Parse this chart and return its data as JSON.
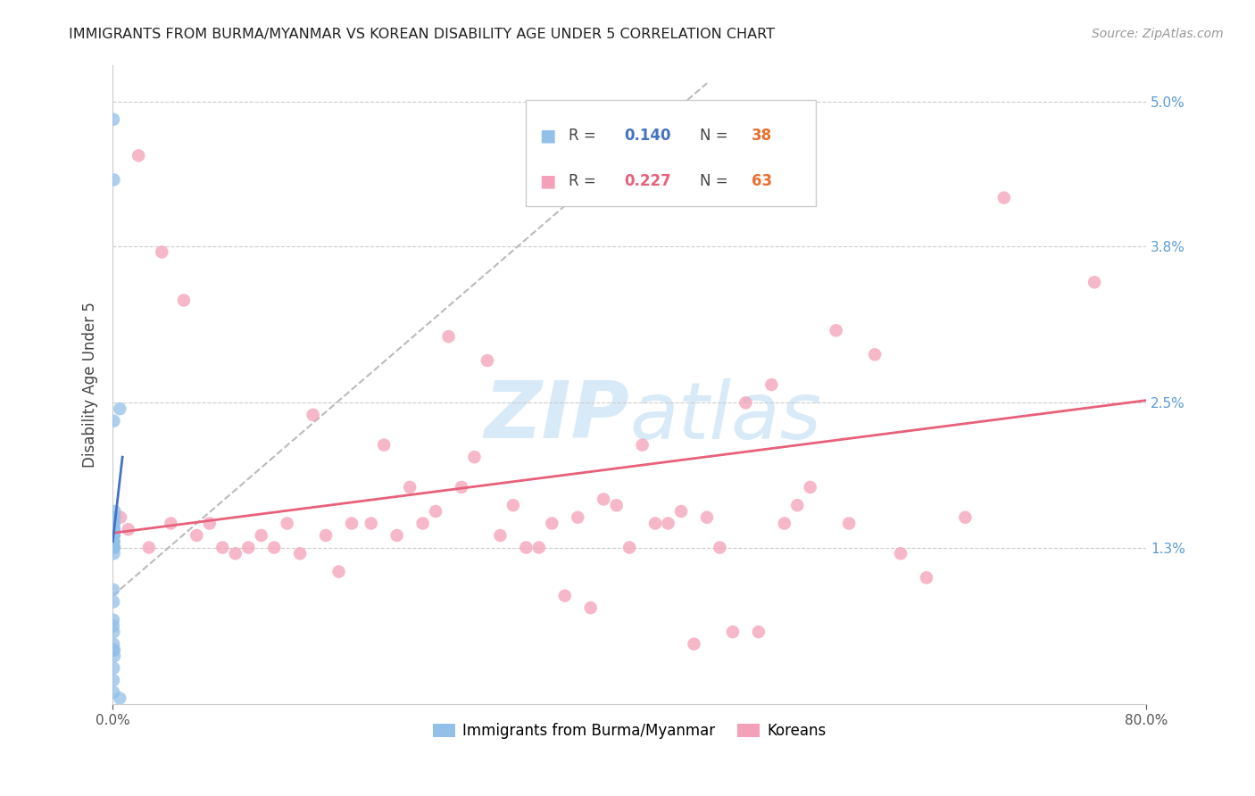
{
  "title": "IMMIGRANTS FROM BURMA/MYANMAR VS KOREAN DISABILITY AGE UNDER 5 CORRELATION CHART",
  "source": "Source: ZipAtlas.com",
  "ylabel": "Disability Age Under 5",
  "xlim": [
    0.0,
    80.0
  ],
  "ylim": [
    0.0,
    5.3
  ],
  "y_ticks": [
    1.3,
    2.5,
    3.8,
    5.0
  ],
  "x_ticks": [
    0.0,
    80.0
  ],
  "blue_color": "#92C0E8",
  "pink_color": "#F4A0B8",
  "blue_line_color": "#4472C4",
  "pink_line_color": "#E8607A",
  "gray_dash_color": "#BBBBBB",
  "watermark_color": "#D8EAF7",
  "legend_label_blue": "Immigrants from Burma/Myanmar",
  "legend_label_pink": "Koreans",
  "legend_r_blue": "0.140",
  "legend_n_blue": "38",
  "legend_r_pink": "0.227",
  "legend_n_pink": "63",
  "blue_scatter_x": [
    0.05,
    0.08,
    0.12,
    0.05,
    0.06,
    0.07,
    0.09,
    0.1,
    0.11,
    0.13,
    0.15,
    0.04,
    0.03,
    0.06,
    0.07,
    0.08,
    0.09,
    0.1,
    0.11,
    0.06,
    0.07,
    0.08,
    0.09,
    0.1,
    0.05,
    0.04,
    0.06,
    0.07,
    0.08,
    0.09,
    0.1,
    0.11,
    0.12,
    0.05,
    0.06,
    0.07,
    0.55,
    0.55
  ],
  "blue_scatter_y": [
    4.85,
    4.35,
    0.45,
    0.2,
    0.1,
    1.55,
    1.5,
    1.45,
    1.4,
    1.55,
    1.6,
    1.3,
    0.45,
    1.35,
    1.4,
    1.45,
    1.35,
    1.45,
    1.5,
    0.85,
    0.6,
    2.35,
    1.25,
    1.3,
    0.95,
    0.65,
    1.35,
    1.4,
    1.3,
    1.3,
    1.45,
    1.3,
    0.4,
    0.7,
    0.5,
    0.3,
    2.45,
    0.05
  ],
  "pink_scatter_x": [
    0.6,
    2.0,
    5.5,
    7.5,
    10.5,
    13.5,
    15.5,
    18.5,
    21.0,
    23.0,
    26.0,
    29.0,
    31.0,
    34.0,
    36.0,
    39.0,
    41.0,
    43.0,
    46.0,
    49.0,
    51.0,
    53.0,
    56.0,
    59.0,
    61.0,
    63.0,
    66.0,
    1.2,
    2.8,
    3.8,
    4.5,
    6.5,
    8.5,
    9.5,
    11.5,
    12.5,
    14.5,
    16.5,
    17.5,
    20.0,
    22.0,
    24.0,
    25.0,
    27.0,
    28.0,
    30.0,
    32.0,
    33.0,
    35.0,
    37.0,
    38.0,
    40.0,
    42.0,
    44.0,
    45.0,
    47.0,
    48.0,
    50.0,
    52.0,
    54.0,
    57.0,
    69.0,
    76.0
  ],
  "pink_scatter_y": [
    1.55,
    4.55,
    3.35,
    1.5,
    1.3,
    1.5,
    2.4,
    1.5,
    2.15,
    1.8,
    3.05,
    2.85,
    1.65,
    1.5,
    1.55,
    1.65,
    2.15,
    1.5,
    1.55,
    2.5,
    2.65,
    1.65,
    3.1,
    2.9,
    1.25,
    1.05,
    1.55,
    1.45,
    1.3,
    3.75,
    1.5,
    1.4,
    1.3,
    1.25,
    1.4,
    1.3,
    1.25,
    1.4,
    1.1,
    1.5,
    1.4,
    1.5,
    1.6,
    1.8,
    2.05,
    1.4,
    1.3,
    1.3,
    0.9,
    0.8,
    1.7,
    1.3,
    1.5,
    1.6,
    0.5,
    1.3,
    0.6,
    0.6,
    1.5,
    1.8,
    1.5,
    4.2,
    3.5
  ],
  "blue_trend_x0": 0.0,
  "blue_trend_y0": 1.35,
  "blue_trend_x1": 0.75,
  "blue_trend_y1": 2.05,
  "gray_dash_x0": 0.0,
  "gray_dash_y0": 0.9,
  "gray_dash_x1": 46.0,
  "gray_dash_y1": 5.15,
  "pink_trend_x0": 0.0,
  "pink_trend_y0": 1.42,
  "pink_trend_x1": 80.0,
  "pink_trend_y1": 2.52
}
